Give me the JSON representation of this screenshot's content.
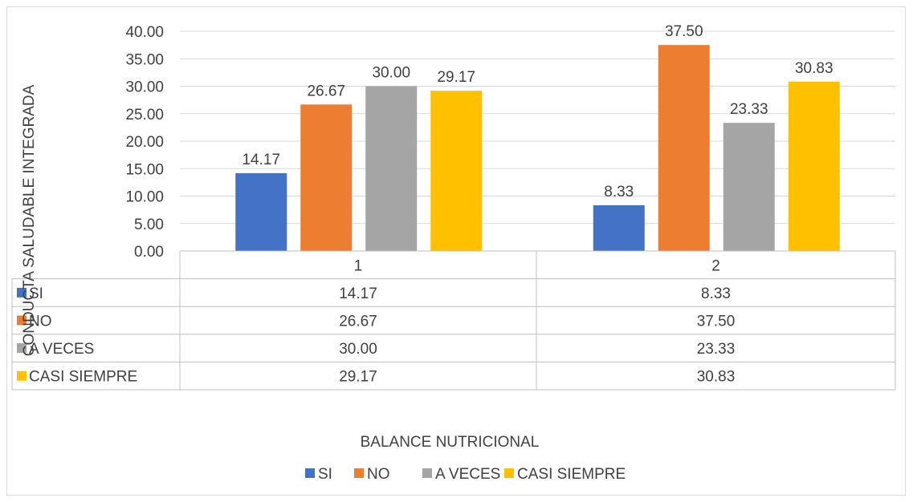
{
  "chart_data": {
    "type": "bar",
    "categories": [
      "1",
      "2"
    ],
    "series": [
      {
        "name": "SI",
        "values": [
          14.17,
          8.33
        ],
        "color": "#4472c4"
      },
      {
        "name": "NO",
        "values": [
          26.67,
          37.5
        ],
        "color": "#ed7d31"
      },
      {
        "name": "A VECES",
        "values": [
          30.0,
          23.33
        ],
        "color": "#a5a5a5"
      },
      {
        "name": "CASI SIEMPRE",
        "values": [
          29.17,
          30.83
        ],
        "color": "#ffc000"
      }
    ],
    "data_labels": [
      [
        "14.17",
        "8.33"
      ],
      [
        "26.67",
        "37.50"
      ],
      [
        "30.00",
        "23.33"
      ],
      [
        "29.17",
        "30.83"
      ]
    ],
    "title": "",
    "xlabel": "BALANCE NUTRICIONAL",
    "ylabel": "CONDUCTA SALUDABLE INTEGRADA",
    "ylim": [
      0,
      40
    ],
    "yticks": [
      "0.00",
      "5.00",
      "10.00",
      "15.00",
      "20.00",
      "25.00",
      "30.00",
      "35.00",
      "40.00"
    ],
    "grid": true,
    "legend_position": "bottom",
    "data_table": true
  }
}
